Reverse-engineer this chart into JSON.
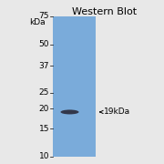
{
  "title": "Western Blot",
  "title_fontsize": 8,
  "kda_label": "kDa",
  "ladder_labels": [
    "75",
    "50",
    "37",
    "25",
    "20",
    "15",
    "10"
  ],
  "ladder_values": [
    75,
    50,
    37,
    25,
    20,
    15,
    10
  ],
  "band_kda": 19,
  "band_label": "← 19kDa",
  "band_label_fontsize": 6.5,
  "gel_bg_color": "#7aabda",
  "gel_bg_color2": "#6a9ece",
  "band_color": "#2a2a3a",
  "axis_label_fontsize": 6.5,
  "kda_label_fontsize": 6.5,
  "figsize": [
    1.8,
    1.8
  ],
  "dpi": 100,
  "bg_color": "#e8e8e8"
}
